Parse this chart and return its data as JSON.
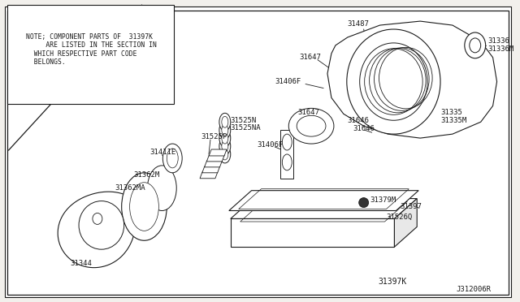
{
  "bg_color": "#f2f0ec",
  "line_color": "#1a1a1a",
  "note_text": "NOTE; COMPONENT PARTS OF  31397K\n     ARE LISTED IN THE SECTION IN\n  WHICH RESPECTIVE PART CODE\n  BELONGS.",
  "diagram_id": "J312006R",
  "kit_label": "31397K",
  "fig_w": 6.4,
  "fig_h": 3.72,
  "dpi": 100
}
